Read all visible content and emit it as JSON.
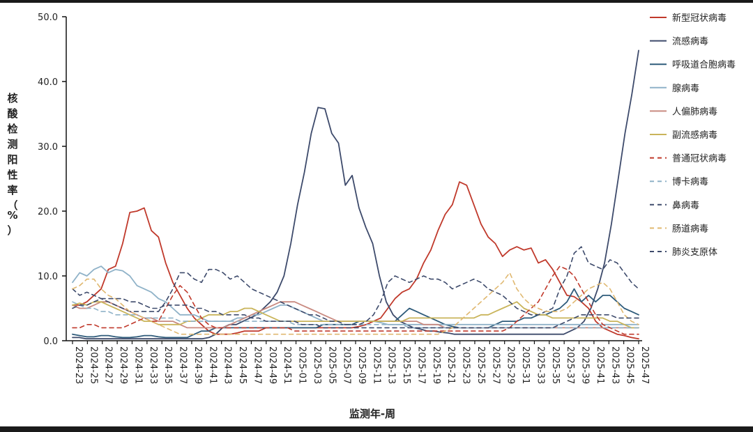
{
  "chart_data": {
    "type": "line",
    "ylabel": "核酸检测阳性率（%）",
    "xlabel": "监测年-周",
    "ylim": [
      0,
      50
    ],
    "yticks": [
      "0.0",
      "10.0",
      "20.0",
      "30.0",
      "40.0",
      "50.0"
    ],
    "x_tick_labels": [
      "2024-23",
      "2024-25",
      "2024-27",
      "2024-29",
      "2024-31",
      "2024-33",
      "2024-35",
      "2024-37",
      "2024-39",
      "2024-41",
      "2024-43",
      "2024-45",
      "2024-47",
      "2024-49",
      "2024-51",
      "2025-01",
      "2025-03",
      "2025-05",
      "2025-07",
      "2025-09",
      "2025-11",
      "2025-13",
      "2025-15",
      "2025-17",
      "2025-19",
      "2025-21",
      "2025-23",
      "2025-25",
      "2025-27",
      "2025-29",
      "2025-31",
      "2025-33",
      "2025-35",
      "2025-37",
      "2025-39",
      "2025-41",
      "2025-43",
      "2025-45",
      "2025-47"
    ],
    "legend_position": "right",
    "series": [
      {
        "name": "新型冠状病毒",
        "color": "#c0392b",
        "dash": false,
        "values": [
          5.5,
          5.5,
          6,
          7,
          8,
          11,
          11.5,
          15,
          19.8,
          20,
          20.5,
          17,
          16,
          12,
          9,
          7,
          5,
          3.5,
          2.5,
          1.5,
          1,
          1,
          1,
          1.2,
          1.5,
          1.5,
          1.5,
          2,
          2,
          2,
          2,
          2,
          2,
          2,
          2,
          2,
          2,
          2,
          2,
          2,
          2.2,
          2.5,
          3,
          3.5,
          5,
          6.5,
          7.5,
          8,
          9.5,
          12,
          14,
          17,
          19.5,
          21,
          24.5,
          24,
          21,
          18,
          16,
          15,
          13,
          14,
          14.5,
          14,
          14.3,
          12,
          12.5,
          11,
          9,
          7,
          6.8,
          6,
          5,
          3,
          2,
          1.5,
          1,
          0.8,
          0.5,
          0.3
        ]
      },
      {
        "name": "流感病毒",
        "color": "#3d4a6b",
        "dash": false,
        "values": [
          0.5,
          0.5,
          0.3,
          0.3,
          0.3,
          0.3,
          0.3,
          0.3,
          0.3,
          0.3,
          0.3,
          0.3,
          0.3,
          0.3,
          0.3,
          0.3,
          0.3,
          0.3,
          0.3,
          0.3,
          0.5,
          1,
          2,
          2.5,
          2.5,
          3,
          3.5,
          4,
          5,
          6,
          7.5,
          10,
          15,
          21,
          26,
          32,
          36,
          35.8,
          32,
          30.5,
          24,
          25.5,
          20.5,
          17.5,
          15,
          10,
          6,
          4,
          3,
          2.5,
          2,
          1.8,
          1.5,
          1.5,
          1.3,
          1.2,
          1,
          1,
          1,
          1,
          1,
          1,
          1,
          1,
          1,
          1,
          1,
          1,
          1,
          1,
          1,
          1,
          1,
          1.5,
          2,
          3,
          5,
          8,
          12,
          18,
          25,
          32,
          38,
          44.8
        ]
      },
      {
        "name": "呼吸道合胞病毒",
        "color": "#2e5b7a",
        "dash": false,
        "values": [
          1,
          0.8,
          0.6,
          0.6,
          0.8,
          0.8,
          0.6,
          0.5,
          0.5,
          0.6,
          0.8,
          0.8,
          0.6,
          0.5,
          0.5,
          0.5,
          0.5,
          1,
          1.5,
          1.5,
          2,
          2,
          2,
          2,
          2,
          2,
          2,
          2,
          2,
          2,
          2,
          2,
          2,
          2,
          2,
          2.5,
          2.5,
          2.5,
          2.5,
          2.5,
          3,
          3,
          3,
          3,
          3,
          3,
          4,
          5,
          4.5,
          4,
          3.5,
          3,
          2.5,
          2.2,
          2,
          2,
          2,
          2,
          2,
          2.5,
          3,
          3,
          3,
          3.5,
          3.5,
          4,
          4,
          4.5,
          5,
          6,
          8,
          6,
          7,
          6,
          7,
          7,
          6,
          5,
          4.5,
          4
        ]
      },
      {
        "name": "腺病毒",
        "color": "#8fb2c8",
        "dash": false,
        "values": [
          9,
          10.5,
          10,
          11,
          11.5,
          10.5,
          11,
          10.8,
          10,
          8.5,
          8,
          7.5,
          6.5,
          6,
          5,
          4,
          4,
          4,
          3.5,
          3,
          3,
          3,
          3,
          3.5,
          3.5,
          4,
          4,
          4.5,
          5,
          5.5,
          5.5,
          5,
          4.5,
          4,
          3.5,
          3,
          3,
          3,
          3,
          3,
          3,
          3,
          3,
          2.8,
          2.5,
          2.5,
          2.5,
          2.5,
          2.5,
          2.5,
          2.5,
          2.5,
          2.5,
          2.5,
          2.5,
          2.5,
          2.5,
          2.5,
          2.5,
          2.5,
          2.5,
          2.5,
          2.5,
          2.5,
          2.5,
          2.5,
          2.5,
          2.5,
          2.5,
          2.5,
          2.5,
          2.5,
          2.5,
          2.5,
          2.5,
          2.5,
          2.5,
          2.5,
          2.5,
          2.5
        ]
      },
      {
        "name": "人偏肺病毒",
        "color": "#c98a80",
        "dash": false,
        "values": [
          5.5,
          5,
          5,
          5.5,
          6,
          6,
          5.5,
          5,
          4.5,
          4,
          3.5,
          3.5,
          3,
          3,
          3,
          2.5,
          2,
          2,
          2,
          2,
          2,
          2,
          2.5,
          3,
          3.5,
          4,
          4.5,
          5,
          5.5,
          6,
          6,
          6,
          5.5,
          5,
          4.5,
          4,
          3.5,
          3,
          3,
          3,
          3,
          3,
          3,
          3,
          3,
          3,
          3,
          3,
          3,
          2.5,
          2.5,
          2.5,
          2,
          2,
          2,
          2,
          2,
          2,
          2,
          2,
          2,
          2,
          2,
          2,
          2,
          2,
          2,
          2,
          2,
          2,
          2,
          2,
          2,
          2,
          2,
          2,
          2,
          2,
          2,
          2
        ]
      },
      {
        "name": "副流感病毒",
        "color": "#c9b45a",
        "dash": false,
        "values": [
          5.5,
          5.8,
          5.5,
          6,
          6,
          5.5,
          5,
          4.5,
          4,
          3.5,
          3,
          3,
          2.5,
          2.5,
          2.5,
          2.5,
          3,
          3,
          3.5,
          4,
          4,
          4,
          4.5,
          4.5,
          5,
          5,
          4.5,
          4,
          3.5,
          3,
          3,
          3,
          3,
          3,
          3,
          3,
          3,
          3,
          3,
          3,
          3,
          3,
          3,
          3,
          3,
          3,
          3,
          3.5,
          3.5,
          3.5,
          3.5,
          3.5,
          3.5,
          3.5,
          3.5,
          3.5,
          3.5,
          4,
          4,
          4.5,
          5,
          5.5,
          6,
          5,
          4.5,
          4,
          4,
          3.5,
          3.5,
          3.5,
          3.5,
          3.5,
          3.5,
          3.5,
          3.5,
          3,
          3,
          2.5,
          2,
          2
        ]
      },
      {
        "name": "普通冠状病毒",
        "color": "#c0392b",
        "dash": true,
        "values": [
          2,
          2,
          2.5,
          2.5,
          2,
          2,
          2,
          2,
          2.5,
          3,
          3.5,
          3,
          3,
          5,
          7,
          8.5,
          7.5,
          5.5,
          3.5,
          2.5,
          2,
          2,
          2,
          2,
          2,
          2,
          2,
          2,
          2,
          2,
          2,
          1.5,
          1.5,
          1.5,
          1.5,
          1.5,
          1.5,
          1.5,
          1.5,
          1.5,
          1.5,
          1.5,
          1.5,
          1.5,
          1.5,
          1.5,
          1.5,
          1.5,
          1.5,
          1.5,
          1.5,
          1.5,
          1.5,
          1.5,
          1.5,
          1.5,
          1.5,
          1.5,
          1.5,
          1.5,
          1.5,
          2,
          3,
          4,
          5,
          6,
          8,
          10,
          11.5,
          11,
          10,
          8,
          6,
          4,
          2.5,
          2,
          1.5,
          1,
          1,
          1
        ]
      },
      {
        "name": "博卡病毒",
        "color": "#8fb2c8",
        "dash": true,
        "values": [
          6,
          5.5,
          5,
          5,
          4.5,
          4.5,
          4,
          4,
          4,
          4,
          3.5,
          3.5,
          3.5,
          3.5,
          3.5,
          3,
          3,
          3,
          3,
          3,
          3,
          3,
          3,
          3,
          3,
          3,
          3,
          3,
          3,
          3,
          3,
          2.5,
          2.5,
          2.5,
          2.5,
          2.5,
          2.5,
          2.5,
          2.5,
          2.5,
          2.5,
          2.5,
          2.5,
          2.5,
          2.5,
          2.5,
          2.5,
          2,
          2,
          2,
          2,
          2,
          2,
          2,
          2,
          2,
          2,
          2,
          2,
          2,
          2,
          2,
          2,
          2,
          2,
          2,
          2,
          2,
          2,
          2,
          2,
          2,
          2,
          2,
          2,
          2,
          2,
          2,
          2,
          2
        ]
      },
      {
        "name": "鼻病毒",
        "color": "#3d4a6b",
        "dash": true,
        "values": [
          8,
          7,
          7.5,
          7,
          6.5,
          6,
          5.5,
          5,
          4.5,
          4.5,
          4.5,
          4.5,
          4.5,
          6,
          8,
          10.5,
          10.5,
          9.5,
          9,
          11,
          11,
          10.5,
          9.5,
          10,
          9,
          8,
          7.5,
          7,
          6.5,
          6,
          5.5,
          5,
          4.5,
          4,
          4,
          3.5,
          3,
          3,
          2.5,
          2.5,
          2.5,
          3,
          4,
          6,
          9,
          10,
          9.5,
          9,
          9.5,
          10,
          9.5,
          9.5,
          9,
          8,
          8.5,
          9,
          9.5,
          9,
          8,
          7.5,
          7,
          6,
          5,
          4.5,
          4,
          4,
          4.5,
          5,
          8,
          10,
          13.5,
          14.5,
          12,
          11.5,
          11,
          12.5,
          12,
          10.5,
          9,
          8
        ]
      },
      {
        "name": "肠道病毒",
        "color": "#e0b870",
        "dash": true,
        "values": [
          8,
          8.5,
          9.5,
          9.5,
          8,
          7,
          6.5,
          5.5,
          4.5,
          4,
          3.5,
          3,
          2.5,
          2,
          1.5,
          1,
          1,
          1,
          1,
          1,
          1,
          1,
          1,
          1,
          1,
          1,
          1,
          1,
          1,
          1,
          1,
          1,
          1,
          1,
          1,
          1,
          1,
          1,
          1,
          1,
          1,
          1,
          1,
          1,
          1,
          1,
          1,
          1,
          1,
          1,
          1,
          1,
          1.5,
          2,
          3,
          4,
          5,
          6,
          7,
          8,
          9,
          10.5,
          8,
          6.5,
          5.5,
          5,
          4.5,
          4.5,
          4.5,
          5,
          6,
          7,
          8,
          8.5,
          9,
          8,
          6,
          4,
          3,
          2.5
        ]
      },
      {
        "name": "肺炎支原体",
        "color": "#3d4a6b",
        "dash": true,
        "values": [
          5,
          5.5,
          5.5,
          6,
          6.5,
          6.5,
          6.5,
          6.5,
          6,
          6,
          5.5,
          5,
          5,
          5.5,
          5.5,
          5.5,
          5.5,
          5,
          5,
          4.5,
          4.5,
          4,
          4,
          4,
          4,
          3.5,
          3.5,
          3,
          3,
          3,
          3,
          3,
          2.5,
          2.5,
          2.5,
          2,
          2,
          2,
          2,
          2,
          2,
          2,
          2,
          2,
          2,
          2,
          2,
          2,
          2,
          2,
          2,
          2,
          2,
          2,
          2,
          2,
          2,
          2,
          2,
          2,
          2,
          2,
          2,
          2,
          2,
          2,
          2,
          2,
          2.5,
          3,
          3.5,
          4,
          4,
          4,
          4,
          4,
          3.5,
          3.5,
          3.5,
          3.5
        ]
      }
    ]
  }
}
